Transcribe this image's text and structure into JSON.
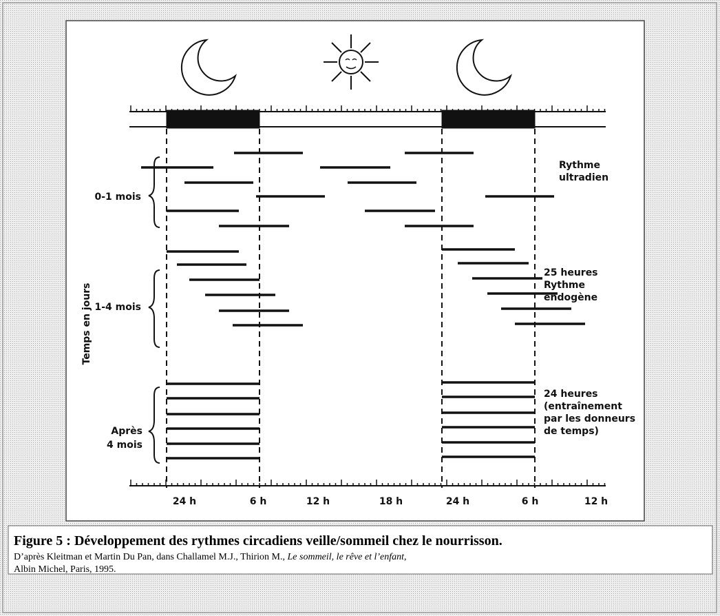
{
  "figure": {
    "x_axis_labels": [
      "24 h",
      "6 h",
      "12 h",
      "18 h",
      "24 h",
      "6 h",
      "12 h"
    ],
    "y_axis_label": "Temps en jours",
    "groups": [
      {
        "label": [
          "0-1 mois"
        ],
        "description": [
          "Rythme",
          "ultradien"
        ]
      },
      {
        "label": [
          "1-4 mois"
        ],
        "description": [
          "25 heures",
          "Rythme",
          "endogène"
        ]
      },
      {
        "label": [
          "Après",
          "4 mois"
        ],
        "description": [
          "24 heures",
          "(entraînement",
          "par les donneurs",
          "de temps)"
        ]
      }
    ]
  },
  "caption": {
    "title": "Figure 5 : Développement des rythmes circadiens veille/sommeil chez  le nourrisson.",
    "source_start": "D’après Kleitman et Martin Du Pan, dans Challamel M.J., Thirion M., ",
    "source_book": "Le sommeil, le rêve et l’enfant",
    "source_sep": ",",
    "source_end": "Albin Michel, Paris, 1995."
  }
}
